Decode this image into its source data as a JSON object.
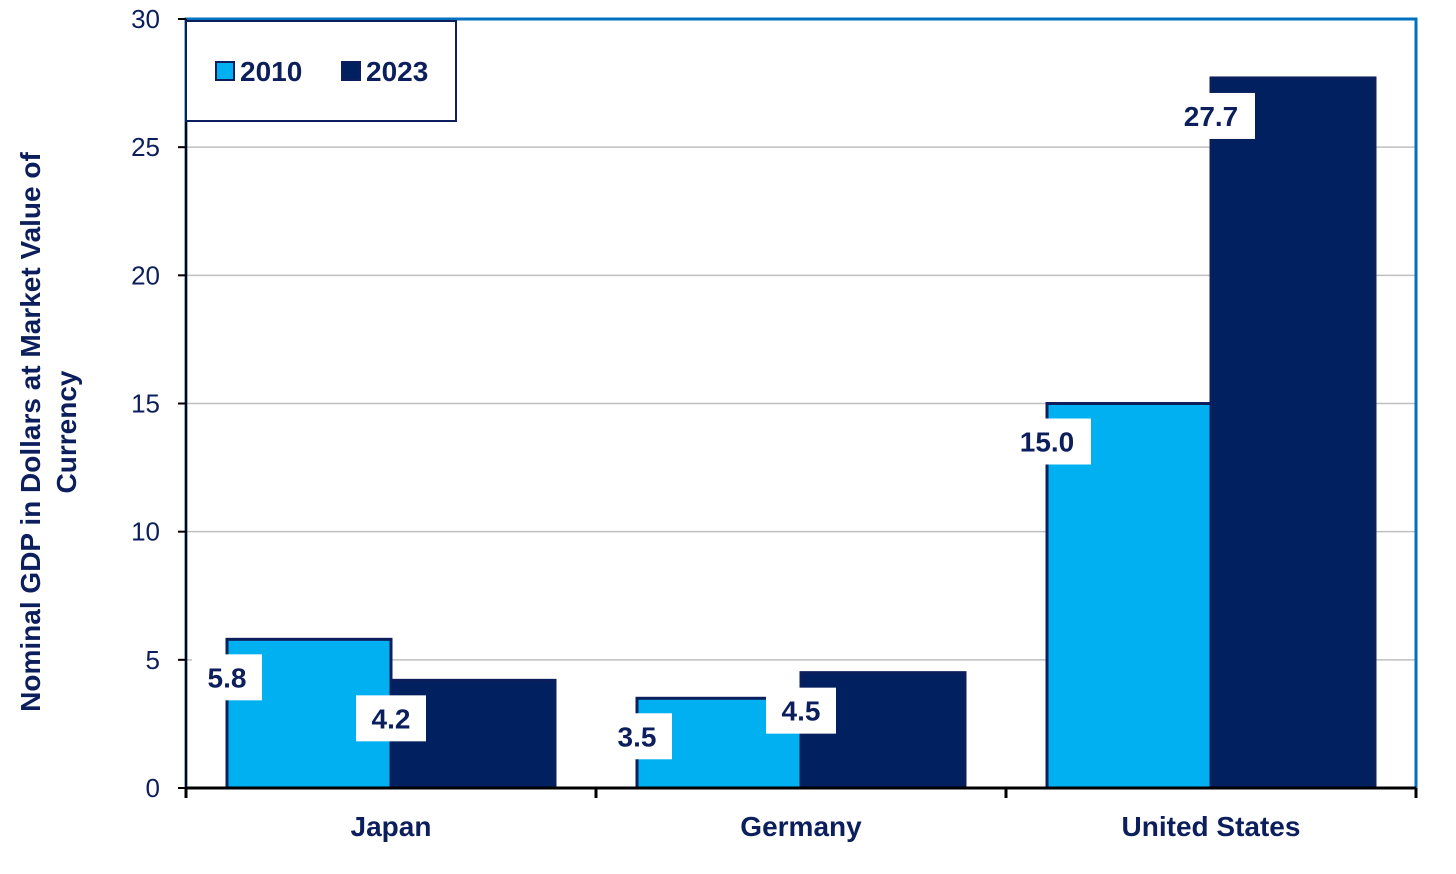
{
  "chart_data": {
    "type": "bar",
    "categories": [
      "Japan",
      "Germany",
      "United States"
    ],
    "series": [
      {
        "name": "2010",
        "values": [
          5.8,
          3.5,
          15.0
        ],
        "color": "#00b0f0"
      },
      {
        "name": "2023",
        "values": [
          4.2,
          4.5,
          27.7
        ],
        "color": "#002060"
      }
    ],
    "data_labels": [
      [
        "5.8",
        "3.5",
        "15.0"
      ],
      [
        "4.2",
        "4.5",
        "27.7"
      ]
    ],
    "ylabel_lines": [
      "Nominal GDP in Dollars at Market Value of",
      "Currency"
    ],
    "xlabel": "",
    "ylim": [
      0,
      30
    ],
    "yticks": [
      0,
      5,
      10,
      15,
      20,
      25,
      30
    ],
    "grid": true,
    "legend_position": "top-left",
    "frame_color": "#0070c0",
    "grid_color": "#bfbfbf",
    "text_color": "#0c1f5c"
  }
}
